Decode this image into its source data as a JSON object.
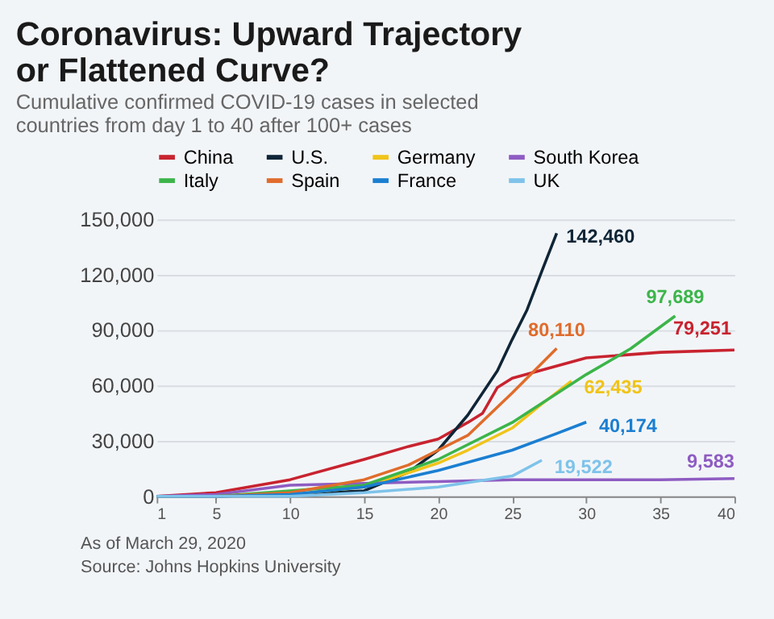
{
  "chart_data": {
    "type": "line",
    "title": "Coronavirus: Upward Trajectory or Flattened Curve?",
    "subtitle": "Cumulative confirmed COVID-19 cases in selected countries from day 1 to 40 after 100+ cases",
    "xlim": [
      1,
      40
    ],
    "xticks": [
      1,
      5,
      10,
      15,
      20,
      25,
      30,
      35,
      40
    ],
    "ylim": [
      0,
      150000
    ],
    "yticks": [
      0,
      {
        "value": 30000,
        "label": "30,000"
      },
      {
        "value": 60000,
        "label": "60,000"
      },
      {
        "value": 90000,
        "label": "90,000"
      },
      {
        "value": 120000,
        "label": "120,000"
      },
      {
        "value": 150000,
        "label": "150,000"
      }
    ],
    "grid": "y",
    "legend": "top",
    "series": [
      {
        "name": "China",
        "color": "#c8232f",
        "x": [
          1,
          5,
          10,
          15,
          18,
          20,
          22,
          23,
          24,
          25,
          30,
          35,
          40
        ],
        "values": [
          0,
          2000,
          9000,
          20000,
          27000,
          31000,
          40000,
          45000,
          59000,
          64000,
          75000,
          78000,
          79251
        ],
        "value_labels": [
          null,
          null,
          null,
          null,
          null,
          null,
          null,
          null,
          null,
          null,
          null,
          null,
          "79,251"
        ]
      },
      {
        "name": "U.S.",
        "color": "#0f2537",
        "x": [
          1,
          5,
          10,
          15,
          18,
          20,
          22,
          24,
          25,
          26,
          27,
          28
        ],
        "values": [
          0,
          0,
          1000,
          3000,
          13000,
          25000,
          44000,
          68000,
          85000,
          101000,
          122000,
          142460
        ],
        "value_labels": [
          null,
          null,
          null,
          null,
          null,
          null,
          null,
          null,
          null,
          null,
          null,
          "142,460"
        ]
      },
      {
        "name": "Germany",
        "color": "#f0c419",
        "x": [
          10,
          15,
          20,
          22,
          25,
          27,
          29
        ],
        "values": [
          1000,
          5000,
          18000,
          25000,
          37000,
          50000,
          62435
        ],
        "value_labels": [
          null,
          null,
          null,
          null,
          null,
          null,
          "62,435"
        ]
      },
      {
        "name": "South Korea",
        "color": "#8e5cc2",
        "x": [
          1,
          5,
          10,
          15,
          20,
          25,
          30,
          35,
          40
        ],
        "values": [
          0,
          1000,
          6000,
          7000,
          8000,
          9000,
          9000,
          9000,
          9583
        ],
        "value_labels": [
          null,
          null,
          null,
          null,
          null,
          null,
          null,
          null,
          "9,583"
        ]
      },
      {
        "name": "Italy",
        "color": "#3cb54a",
        "x": [
          1,
          5,
          10,
          15,
          20,
          25,
          30,
          33,
          36
        ],
        "values": [
          0,
          0,
          3000,
          6000,
          20000,
          40000,
          66000,
          80000,
          97689
        ],
        "value_labels": [
          null,
          null,
          null,
          null,
          null,
          null,
          null,
          null,
          "97,689"
        ]
      },
      {
        "name": "Spain",
        "color": "#e06c2c",
        "x": [
          1,
          5,
          10,
          15,
          18,
          20,
          22,
          25,
          28
        ],
        "values": [
          0,
          0,
          2000,
          9000,
          17000,
          25000,
          33000,
          56000,
          80110
        ],
        "value_labels": [
          null,
          null,
          null,
          null,
          null,
          null,
          null,
          null,
          "80,110"
        ]
      },
      {
        "name": "France",
        "color": "#1b7fd1",
        "x": [
          1,
          5,
          10,
          15,
          20,
          25,
          28,
          30
        ],
        "values": [
          0,
          0,
          1000,
          5000,
          14000,
          25000,
          34000,
          40174
        ],
        "value_labels": [
          null,
          null,
          null,
          null,
          null,
          null,
          null,
          "40,174"
        ]
      },
      {
        "name": "UK",
        "color": "#7ec3ea",
        "x": [
          1,
          5,
          10,
          15,
          20,
          25,
          27
        ],
        "values": [
          0,
          0,
          0,
          2000,
          5000,
          11000,
          19522
        ],
        "value_labels": [
          null,
          null,
          null,
          null,
          null,
          null,
          "19,522"
        ]
      }
    ],
    "annotations": [
      "As of March 29, 2020",
      "Source: Johns Hopkins University"
    ]
  }
}
